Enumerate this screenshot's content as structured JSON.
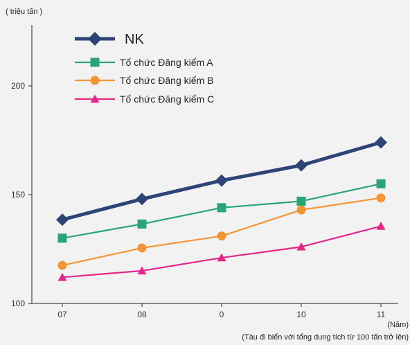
{
  "chart_data": {
    "type": "line",
    "title": "",
    "ylabel": "( triệu tấn )",
    "xlabel": "(Năm)",
    "note": "(Tàu đi biển với tổng dung tích từ 100 tấn trở lên)",
    "categories": [
      "07",
      "08",
      "0",
      "10",
      "11"
    ],
    "y_ticks": [
      "100",
      "150",
      "200"
    ],
    "ylim": [
      100,
      210
    ],
    "grid": false,
    "legend_position": "top-left",
    "series": [
      {
        "name": "NK",
        "values": [
          138.5,
          148,
          156.5,
          163.5,
          174
        ],
        "color": "#2e4476",
        "marker": "diamond",
        "bold": true
      },
      {
        "name": "Tổ chức Đăng kiểm A",
        "values": [
          130,
          136.5,
          144,
          147,
          155
        ],
        "color": "#2aa575",
        "marker": "square"
      },
      {
        "name": "Tổ chức Đăng kiểm B",
        "values": [
          117.5,
          125.5,
          131,
          143,
          148.5
        ],
        "color": "#f39435",
        "marker": "circle"
      },
      {
        "name": "Tổ chức Đăng kiểm C",
        "values": [
          112,
          115,
          121,
          126,
          135.5
        ],
        "color": "#e4268a",
        "marker": "triangle"
      }
    ]
  }
}
